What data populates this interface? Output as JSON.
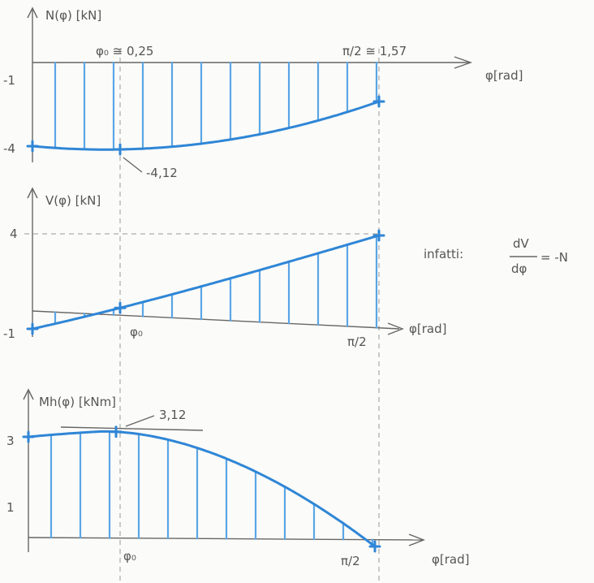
{
  "panels": [
    {
      "y_axis_label": "N(φ) [kN]",
      "x_axis_label": "φ[rad]",
      "marker_left": "φ₀ ≅ 0,25",
      "marker_right": "π/2 ≅ 1,57",
      "y_labels": [
        "-1",
        "-4"
      ],
      "annotation": "-4,12"
    },
    {
      "y_axis_label": "V(φ) [kN]",
      "x_axis_label": "φ[rad]",
      "marker_left": "φ₀",
      "marker_right": "π/2",
      "y_labels": [
        "4",
        "-1"
      ],
      "note": {
        "prefix": "infatti:",
        "numerator": "dV",
        "denominator": "dφ",
        "suffix": "= -N"
      }
    },
    {
      "y_axis_label": "Mh(φ) [kNm]",
      "x_axis_label": "φ[rad]",
      "marker_left": "φ₀",
      "marker_right": "π/2",
      "y_labels": [
        "3",
        "1"
      ],
      "annotation": "3,12"
    }
  ]
}
